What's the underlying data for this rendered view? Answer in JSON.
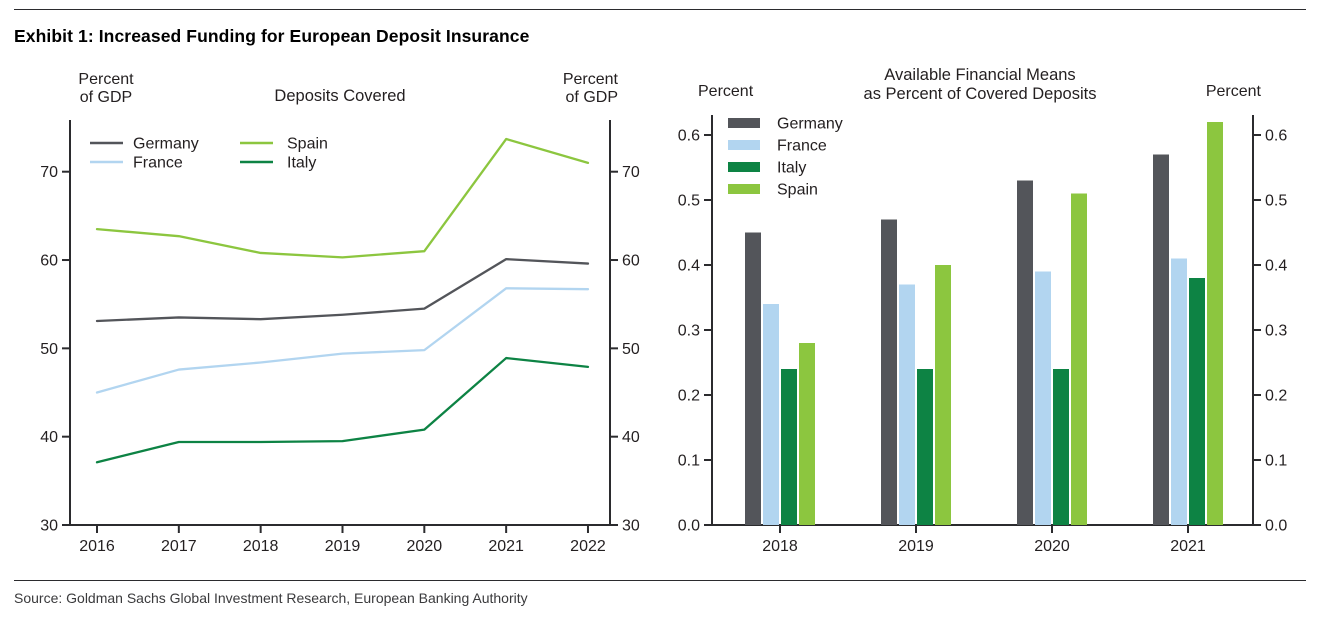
{
  "page": {
    "title": "Exhibit 1: Increased Funding for European Deposit Insurance",
    "source": "Source: Goldman Sachs Global Investment Research, European Banking Authority"
  },
  "colors": {
    "germany": "#53555A",
    "france": "#B2D5F0",
    "italy": "#0D8344",
    "spain": "#8CC63F",
    "axis": "#2B2B2E",
    "text": "#231F20"
  },
  "chart_data": [
    {
      "id": "deposits_covered",
      "type": "line",
      "title": "Deposits Covered",
      "left_axis_label_lines": [
        "Percent",
        "of GDP"
      ],
      "right_axis_label_lines": [
        "Percent",
        "of GDP"
      ],
      "x": [
        2016,
        2017,
        2018,
        2019,
        2020,
        2021,
        2022
      ],
      "series": [
        {
          "name": "Germany",
          "color_key": "germany",
          "values": [
            53.1,
            53.5,
            53.3,
            53.8,
            54.5,
            60.1,
            59.6
          ]
        },
        {
          "name": "France",
          "color_key": "france",
          "values": [
            45.0,
            47.6,
            48.4,
            49.4,
            49.8,
            56.8,
            56.7
          ]
        },
        {
          "name": "Spain",
          "color_key": "spain",
          "values": [
            63.5,
            62.7,
            60.8,
            60.3,
            61.0,
            73.7,
            71.0
          ]
        },
        {
          "name": "Italy",
          "color_key": "italy",
          "values": [
            37.1,
            39.4,
            39.4,
            39.5,
            40.8,
            48.9,
            47.9
          ]
        }
      ],
      "ylim": [
        30,
        75.9
      ],
      "yticks": [
        30,
        40,
        50,
        60,
        70
      ],
      "legend_columns": [
        [
          "Germany",
          "France"
        ],
        [
          "Spain",
          "Italy"
        ]
      ],
      "legend_position": "top-left",
      "grid": false
    },
    {
      "id": "available_financial_means",
      "type": "bar",
      "title_lines": [
        "Available Financial Means",
        "as Percent of Covered Deposits"
      ],
      "left_axis_label": "Percent",
      "right_axis_label": "Percent",
      "categories": [
        "2018",
        "2019",
        "2020",
        "2021"
      ],
      "series": [
        {
          "name": "Germany",
          "color_key": "germany",
          "values": [
            0.45,
            0.47,
            0.53,
            0.57
          ]
        },
        {
          "name": "France",
          "color_key": "france",
          "values": [
            0.34,
            0.37,
            0.39,
            0.41
          ]
        },
        {
          "name": "Italy",
          "color_key": "italy",
          "values": [
            0.24,
            0.24,
            0.24,
            0.38
          ]
        },
        {
          "name": "Spain",
          "color_key": "spain",
          "values": [
            0.28,
            0.4,
            0.51,
            0.62
          ]
        }
      ],
      "ylim": [
        0,
        0.63
      ],
      "yticks": [
        0.0,
        0.1,
        0.2,
        0.3,
        0.4,
        0.5,
        0.6
      ],
      "legend_order": [
        "Germany",
        "France",
        "Italy",
        "Spain"
      ],
      "legend_position": "top-left",
      "grid": false
    }
  ]
}
